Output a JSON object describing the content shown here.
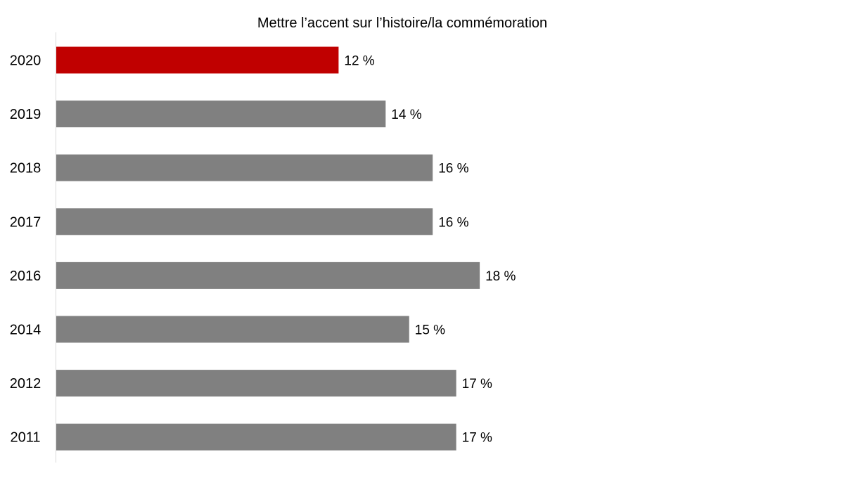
{
  "chart_data": {
    "type": "bar",
    "orientation": "horizontal",
    "title": "Mettre l’accent sur l’histoire/la commémoration",
    "xlabel": "",
    "ylabel": "",
    "categories": [
      "2020",
      "2019",
      "2018",
      "2017",
      "2016",
      "2014",
      "2012",
      "2011"
    ],
    "values": [
      12,
      14,
      16,
      16,
      18,
      15,
      17,
      17
    ],
    "data_labels": [
      "12 %",
      "14 %",
      "16 %",
      "16 %",
      "18 %",
      "15 %",
      "17 %",
      "17 %"
    ],
    "xlim": [
      0,
      33
    ],
    "grid": false,
    "legend": "none",
    "colors": {
      "highlight": "#c00000",
      "default": "#808080",
      "highlight_category": "2020"
    }
  }
}
